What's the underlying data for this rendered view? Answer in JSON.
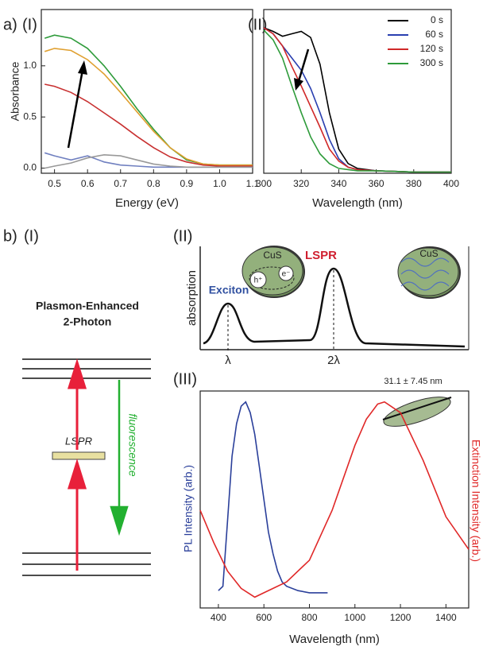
{
  "panels": {
    "a": "a)",
    "a1": "(I)",
    "a2": "(II)",
    "b": "b)",
    "b1": "(I)",
    "b2": "(II)",
    "b3": "(III)"
  },
  "diagram": {
    "title_line1": "Plasmon-Enhanced",
    "title_line2": "2-Photon",
    "lspr": "LSPR",
    "fluorescence": "fluorescence"
  },
  "schematic": {
    "ylabel": "absorption",
    "exciton": "Exciton",
    "lspr": "LSPR",
    "x1": "λ",
    "x2": "2λ",
    "particle1": "CuS",
    "particle2": "CuS",
    "hole": "h⁺",
    "electron": "e⁻"
  },
  "chart_data": [
    {
      "type": "line",
      "xlabel": "Energy (eV)",
      "ylabel": "Absorbance",
      "x": [
        0.47,
        0.5,
        0.55,
        0.6,
        0.65,
        0.7,
        0.75,
        0.8,
        0.85,
        0.9,
        0.95,
        1.0,
        1.05,
        1.1
      ],
      "xlim": [
        0.46,
        1.1
      ],
      "xticks": [
        0.5,
        0.6,
        0.7,
        0.8,
        0.9,
        {
          "value": 1.0,
          "label": "1.0"
        },
        1.1
      ],
      "ylim": [
        -0.05,
        1.55
      ],
      "yticks": [
        {
          "value": 0,
          "label": "0.0"
        },
        0.5,
        {
          "value": 1.0,
          "label": "1.0"
        }
      ],
      "series": [
        {
          "color": "#2e9b3a",
          "values": [
            1.27,
            1.3,
            1.27,
            1.17,
            1.0,
            0.8,
            0.58,
            0.38,
            0.2,
            0.08,
            0.04,
            0.03,
            0.03,
            0.03
          ]
        },
        {
          "color": "#e0a030",
          "values": [
            1.14,
            1.17,
            1.15,
            1.06,
            0.92,
            0.74,
            0.55,
            0.36,
            0.2,
            0.09,
            0.04,
            0.03,
            0.03,
            0.03
          ]
        },
        {
          "color": "#c83030",
          "values": [
            0.82,
            0.8,
            0.74,
            0.65,
            0.54,
            0.43,
            0.31,
            0.2,
            0.11,
            0.06,
            0.03,
            0.02,
            0.02,
            0.02
          ]
        },
        {
          "color": "#7080c0",
          "values": [
            0.15,
            0.12,
            0.08,
            0.12,
            0.06,
            0.03,
            0.02,
            0.01,
            0.01,
            0.01,
            0.01,
            0.01,
            0.01,
            0.01
          ]
        },
        {
          "color": "#999999",
          "values": [
            0.0,
            0.02,
            0.05,
            0.1,
            0.13,
            0.12,
            0.08,
            0.04,
            0.02,
            0.01,
            0.01,
            0.01,
            0.01,
            0.01
          ]
        }
      ]
    },
    {
      "type": "line",
      "xlabel": "Wavelength (nm)",
      "legend": "upper right",
      "x": [
        300,
        305,
        310,
        315,
        320,
        325,
        330,
        335,
        340,
        345,
        350,
        360,
        380,
        400
      ],
      "xlim": [
        300,
        400
      ],
      "xticks": [
        300,
        320,
        340,
        360,
        380,
        400
      ],
      "ylim": [
        0,
        1.35
      ],
      "series": [
        {
          "name": "0 s",
          "color": "#000000",
          "values": [
            1.2,
            1.17,
            1.13,
            1.15,
            1.17,
            1.12,
            0.9,
            0.5,
            0.2,
            0.08,
            0.04,
            0.02,
            0.01,
            0.01
          ]
        },
        {
          "name": "60 s",
          "color": "#2a3fb0",
          "values": [
            1.2,
            1.15,
            1.05,
            0.95,
            0.85,
            0.7,
            0.5,
            0.28,
            0.12,
            0.05,
            0.03,
            0.02,
            0.01,
            0.01
          ]
        },
        {
          "name": "120 s",
          "color": "#d02828",
          "values": [
            1.2,
            1.15,
            1.05,
            0.88,
            0.72,
            0.55,
            0.38,
            0.2,
            0.1,
            0.05,
            0.03,
            0.02,
            0.01,
            0.01
          ]
        },
        {
          "name": "300 s",
          "color": "#2e9b3a",
          "values": [
            1.18,
            1.1,
            0.95,
            0.72,
            0.5,
            0.3,
            0.16,
            0.08,
            0.04,
            0.03,
            0.02,
            0.02,
            0.01,
            0.01
          ]
        }
      ]
    },
    {
      "type": "line",
      "xlabel": "Wavelength (nm)",
      "ylabel": "PL Intensity (arb.)",
      "y2label": "Extinction Intensity (arb.)",
      "annotation": "31.1 ± 7.45 nm",
      "xlim": [
        320,
        1500
      ],
      "xticks": [
        400,
        600,
        800,
        1000,
        1200,
        1400
      ],
      "ylim": [
        0,
        1
      ],
      "y2lim": [
        0,
        1
      ],
      "series": [
        {
          "color": "#2a3f9a",
          "x": [
            400,
            420,
            440,
            460,
            480,
            500,
            520,
            540,
            560,
            580,
            600,
            620,
            640,
            660,
            680,
            700,
            750,
            800,
            880
          ],
          "values": [
            0.08,
            0.1,
            0.4,
            0.7,
            0.85,
            0.93,
            0.95,
            0.9,
            0.8,
            0.65,
            0.5,
            0.35,
            0.25,
            0.17,
            0.12,
            0.1,
            0.08,
            0.07,
            0.07
          ]
        },
        {
          "color": "#e02828",
          "axis": "y2",
          "x": [
            320,
            380,
            440,
            500,
            560,
            600,
            700,
            800,
            900,
            1000,
            1050,
            1100,
            1130,
            1200,
            1300,
            1400,
            1500
          ],
          "values": [
            0.45,
            0.3,
            0.17,
            0.09,
            0.05,
            0.07,
            0.12,
            0.22,
            0.45,
            0.75,
            0.87,
            0.94,
            0.95,
            0.9,
            0.68,
            0.42,
            0.27
          ]
        }
      ]
    }
  ]
}
